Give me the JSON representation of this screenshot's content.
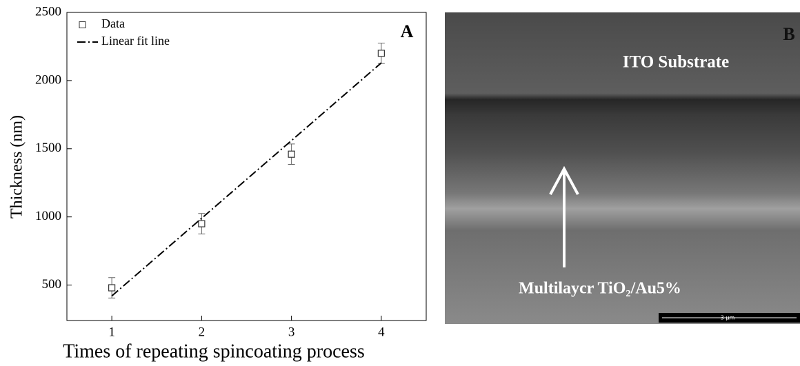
{
  "chart_data": {
    "type": "scatter",
    "panel_label": "A",
    "xlabel": "Times of repeating spincoating process",
    "ylabel": "Thickness (nm)",
    "xlim": [
      0.5,
      4.5
    ],
    "ylim": [
      240,
      2500
    ],
    "xticks": [
      1,
      2,
      3,
      4
    ],
    "yticks": [
      500,
      1000,
      1500,
      2000,
      2500
    ],
    "legend": "upper left",
    "series": [
      {
        "name": "Data",
        "color": "#333333",
        "marker": "square",
        "x": [
          1,
          2,
          3,
          4
        ],
        "values": [
          480,
          950,
          1460,
          2200
        ],
        "errors": [
          75,
          75,
          75,
          75
        ]
      },
      {
        "name": "Linear fit line",
        "color": "#000000",
        "line_style": "dash-dot",
        "x": [
          1,
          4
        ],
        "values": [
          420,
          2130
        ]
      }
    ]
  },
  "image_panel": {
    "panel_label": "B",
    "top_label": "ITO Substrate",
    "layer_label": "Multilaycr TiO₂/Au5%",
    "scale_bar": "3 μm"
  }
}
